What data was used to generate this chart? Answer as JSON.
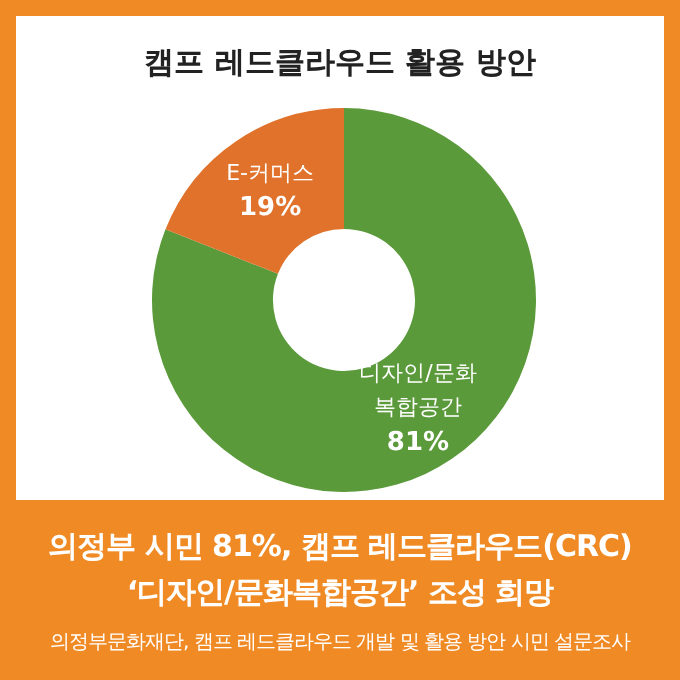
{
  "chart_data": {
    "type": "donut",
    "title": "캠프 레드클라우드 활용 방안",
    "categories": [
      "디자인/문화 복합공간",
      "E-커머스"
    ],
    "values": [
      81,
      19
    ],
    "colors": [
      "#5b9a3b",
      "#e0722b"
    ],
    "value_labels": [
      "81%",
      "19%"
    ],
    "legend": false,
    "annotations": [
      "의정부 시민 81%, 캠프 레드클라우드(CRC)",
      "‘디자인/문화복합공간’ 조성 희망",
      "의정부문화재단, 캠프 레드클라우드 개발 및 활용 방안 시민 설문조사"
    ]
  }
}
